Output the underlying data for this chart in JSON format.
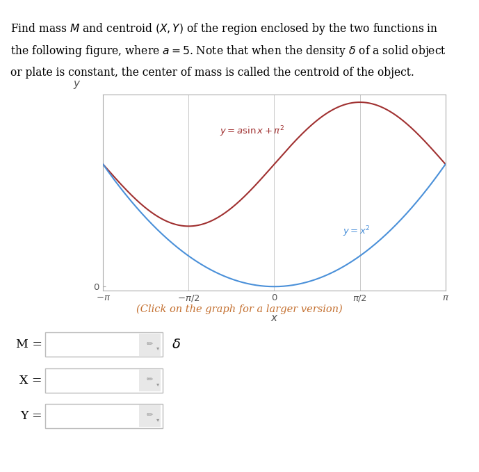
{
  "title_text_line1": "Find mass $M$ and centroid $(X,Y)$ of the region enclosed by the two functions in",
  "title_text_line2": "the following figure, where $a = 5$. Note that when the density $\\delta$ of a solid object",
  "title_text_line3": "or plate is constant, the center of mass is called the centroid of the object.",
  "a": 5,
  "x_min": -3.14159265,
  "x_max": 3.14159265,
  "y_min": -0.3,
  "y_max": 15.5,
  "xlabel": "$x$",
  "ylabel": "$y$",
  "xtick_labels": [
    "$-\\pi$",
    "$-\\pi/2$",
    "$0$",
    "$\\pi/2$",
    "$\\pi$"
  ],
  "xtick_vals": [
    -3.14159265,
    -1.5707963,
    0,
    1.5707963,
    3.14159265
  ],
  "curve1_label": "$y = a\\sin x + \\pi^2$",
  "curve2_label": "$y = x^2$",
  "curve1_color": "#a03030",
  "curve2_color": "#4a90d9",
  "click_text": "(Click on the graph for a larger version)",
  "M_label": "M =",
  "X_label": "X =",
  "Y_label": "Y =",
  "delta_symbol": "$\\delta$",
  "bg_color": "#ffffff",
  "plot_bg_color": "#ffffff",
  "grid_color": "#c8c8c8",
  "spine_color": "#aaaaaa"
}
